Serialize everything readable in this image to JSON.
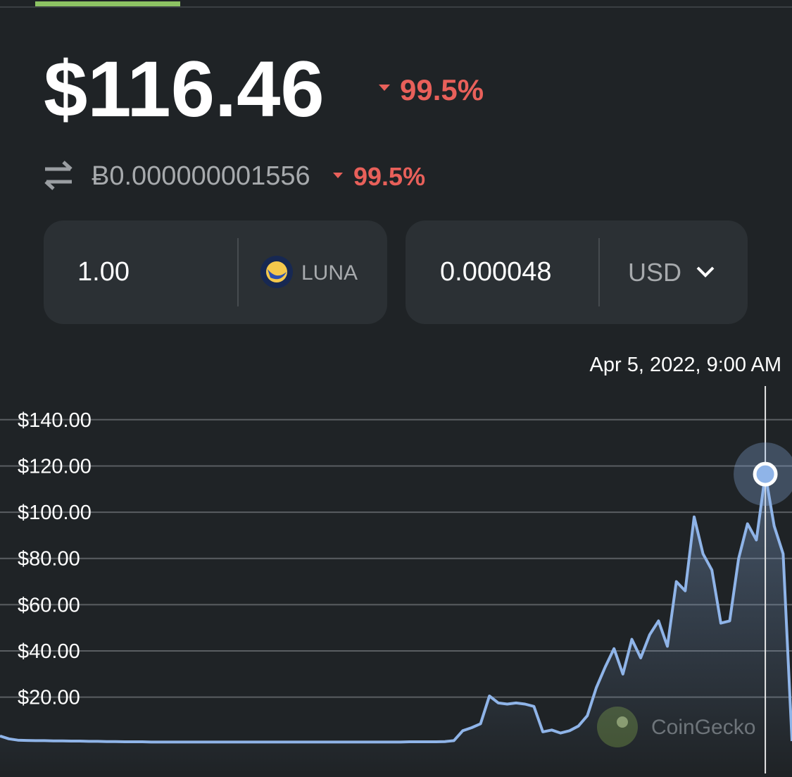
{
  "price": "$116.46",
  "price_change": "99.5%",
  "btc_price": "Ƀ0.000000001556",
  "btc_change": "99.5%",
  "converter": {
    "amount": "1.00",
    "coin": "LUNA",
    "result": "0.000048",
    "currency": "USD"
  },
  "chart_data": {
    "type": "line",
    "tooltip": "Apr 5, 2022, 9:00 AM",
    "watermark": "CoinGecko",
    "color": "#8fb4e8",
    "grid": true,
    "ylim": [
      -13,
      157
    ],
    "yticks": [
      {
        "value": 20,
        "label": "$20.00"
      },
      {
        "value": 40,
        "label": "$40.00"
      },
      {
        "value": 60,
        "label": "$60.00"
      },
      {
        "value": 80,
        "label": "$80.00"
      },
      {
        "value": 100,
        "label": "$100.00"
      },
      {
        "value": 120,
        "label": "$120.00"
      },
      {
        "value": 140,
        "label": "$140.00"
      }
    ],
    "values": [
      3.2,
      2.0,
      1.4,
      1.3,
      1.2,
      1.2,
      1.1,
      1.1,
      1.0,
      1.0,
      0.9,
      0.9,
      0.8,
      0.8,
      0.7,
      0.7,
      0.7,
      0.6,
      0.6,
      0.6,
      0.6,
      0.6,
      0.6,
      0.6,
      0.6,
      0.6,
      0.6,
      0.6,
      0.6,
      0.6,
      0.6,
      0.6,
      0.6,
      0.6,
      0.6,
      0.6,
      0.6,
      0.6,
      0.6,
      0.6,
      0.6,
      0.6,
      0.6,
      0.6,
      0.6,
      0.6,
      0.7,
      0.7,
      0.7,
      0.7,
      0.8,
      1.2,
      5.5,
      6.8,
      8.5,
      20.5,
      17.5,
      17,
      17.5,
      17,
      16,
      5.0,
      5.8,
      4.5,
      5.5,
      7.5,
      12,
      24,
      33,
      41,
      30,
      45,
      37,
      47,
      53,
      42,
      70,
      66,
      98,
      82,
      75,
      52,
      53,
      80,
      95,
      88,
      116.46,
      94,
      82,
      1.0
    ]
  }
}
